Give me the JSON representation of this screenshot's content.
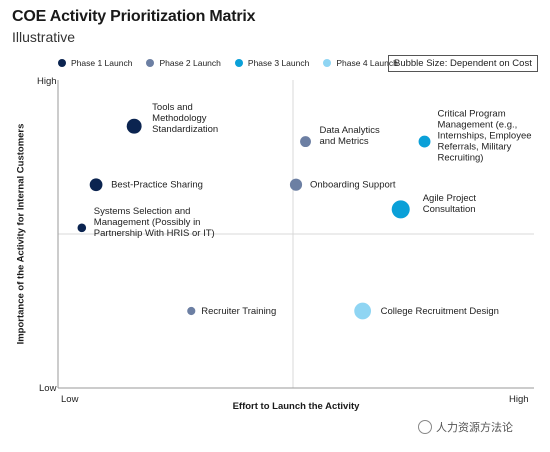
{
  "title": "COE Activity Prioritization Matrix",
  "subtitle": "Illustrative",
  "bubble_note": "Bubble Size: Dependent on Cost",
  "watermark": "人力资源方法论",
  "colors": {
    "phase1": "#0b2450",
    "phase2": "#6c7fa3",
    "phase3": "#0aa0d8",
    "phase4": "#8fd5f3",
    "axis": "#9a9a9a",
    "divider": "#d8d8d8"
  },
  "chart_data": {
    "type": "scatter",
    "xlabel": "Effort to Launch the Activity",
    "ylabel": "Importance of the Activity for Internal Customers",
    "x_ticks": [
      "Low",
      "High"
    ],
    "y_ticks": [
      "Low",
      "High"
    ],
    "xlim": [
      0,
      1
    ],
    "ylim": [
      0,
      1
    ],
    "legend_position": "top-left",
    "series": [
      {
        "name": "Phase 1 Launch",
        "color_key": "phase1",
        "points": [
          {
            "label": "Tools and Methodology Standardization",
            "x": 0.16,
            "y": 0.85,
            "size": 3
          },
          {
            "label": "Best-Practice Sharing",
            "x": 0.08,
            "y": 0.66,
            "size": 2.2
          },
          {
            "label": "Systems Selection and Management (Possibly in Partnership With HRIS or IT)",
            "x": 0.05,
            "y": 0.52,
            "size": 1
          }
        ]
      },
      {
        "name": "Phase 2 Launch",
        "color_key": "phase2",
        "points": [
          {
            "label": "Data Analytics and Metrics",
            "x": 0.52,
            "y": 0.8,
            "size": 1.6
          },
          {
            "label": "Onboarding Support",
            "x": 0.5,
            "y": 0.66,
            "size": 2
          },
          {
            "label": "Recruiter Training",
            "x": 0.28,
            "y": 0.25,
            "size": 0.9
          }
        ]
      },
      {
        "name": "Phase 3 Launch",
        "color_key": "phase3",
        "points": [
          {
            "label": "Critical Program Management (e.g., Internships, Employee Referrals, Military Recruiting)",
            "x": 0.77,
            "y": 0.8,
            "size": 1.9
          },
          {
            "label": "Agile Project Consultation",
            "x": 0.72,
            "y": 0.58,
            "size": 4.4
          }
        ]
      },
      {
        "name": "Phase 4 Launch",
        "color_key": "phase4",
        "points": [
          {
            "label": "College Recruitment Design",
            "x": 0.64,
            "y": 0.25,
            "size": 3.8
          }
        ]
      }
    ]
  }
}
